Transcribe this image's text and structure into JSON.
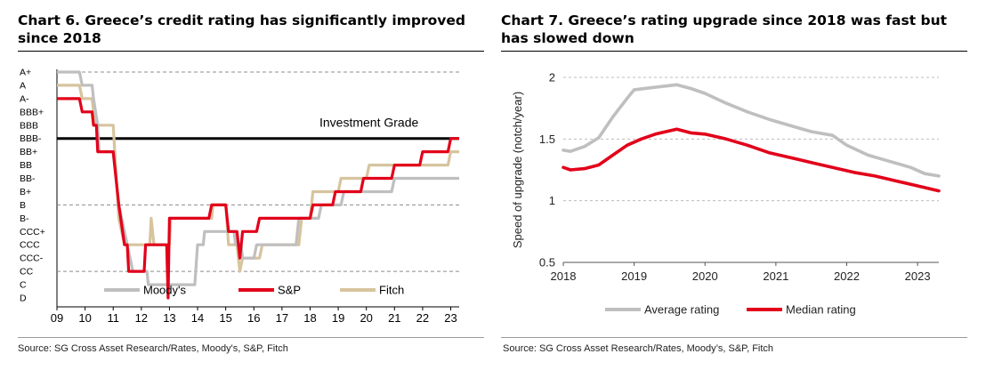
{
  "left_panel": {
    "title": "Chart 6. Greece’s credit rating has significantly improved since 2018",
    "source": "Source: SG Cross Asset Research/Rates, Moody's, S&P, Fitch"
  },
  "right_panel": {
    "title": "Chart 7. Greece’s rating upgrade since 2018 was fast but has slowed down",
    "source": "Source: SG Cross Asset Research/Rates, Moody’s, S&P, Fitch"
  },
  "chart_data": [
    {
      "type": "line",
      "title": "Chart 6. Greece’s credit rating has significantly improved since 2018",
      "x_tick_labels": [
        "09",
        "10",
        "11",
        "12",
        "13",
        "14",
        "15",
        "16",
        "17",
        "18",
        "19",
        "20",
        "21",
        "22",
        "23"
      ],
      "xlim": [
        2009,
        2023.3
      ],
      "y_categories": [
        "A+",
        "A",
        "A-",
        "BBB+",
        "BBB",
        "BBB-",
        "BB+",
        "BB",
        "BB-",
        "B+",
        "B",
        "B-",
        "CCC+",
        "CCC",
        "CCC-",
        "CC",
        "C",
        "D"
      ],
      "grid_dashed_at": [
        "A+",
        "B",
        "CC"
      ],
      "annotation": {
        "text": "Investment Grade",
        "level": "BBB-"
      },
      "legend_position": "bottom",
      "series": [
        {
          "name": "Moody's",
          "color": "#bfbfbf",
          "points": [
            [
              2009.0,
              "A+"
            ],
            [
              2009.8,
              "A+"
            ],
            [
              2009.9,
              "A"
            ],
            [
              2010.25,
              "A"
            ],
            [
              2010.3,
              "A-"
            ],
            [
              2010.45,
              "BBB"
            ],
            [
              2010.5,
              "BB+"
            ],
            [
              2011.0,
              "BB+"
            ],
            [
              2011.2,
              "B"
            ],
            [
              2011.5,
              "CCC"
            ],
            [
              2011.7,
              "CC"
            ],
            [
              2012.2,
              "CC"
            ],
            [
              2012.25,
              "C"
            ],
            [
              2013.9,
              "C"
            ],
            [
              2014.0,
              "CCC"
            ],
            [
              2014.2,
              "CCC"
            ],
            [
              2014.25,
              "CCC+"
            ],
            [
              2015.3,
              "CCC+"
            ],
            [
              2015.35,
              "CCC"
            ],
            [
              2015.55,
              "CCC"
            ],
            [
              2015.6,
              "CCC-"
            ],
            [
              2016.0,
              "CCC-"
            ],
            [
              2016.1,
              "CCC"
            ],
            [
              2017.5,
              "CCC"
            ],
            [
              2017.6,
              "B-"
            ],
            [
              2018.3,
              "B-"
            ],
            [
              2018.4,
              "B"
            ],
            [
              2019.1,
              "B"
            ],
            [
              2019.2,
              "B+"
            ],
            [
              2020.9,
              "B+"
            ],
            [
              2021.0,
              "BB-"
            ],
            [
              2023.3,
              "BB-"
            ]
          ]
        },
        {
          "name": "S&P",
          "color": "#e2001a",
          "points": [
            [
              2009.0,
              "A-"
            ],
            [
              2009.8,
              "A-"
            ],
            [
              2009.9,
              "BBB+"
            ],
            [
              2010.25,
              "BBB+"
            ],
            [
              2010.3,
              "BBB"
            ],
            [
              2010.4,
              "BBB"
            ],
            [
              2010.45,
              "BB+"
            ],
            [
              2011.0,
              "BB+"
            ],
            [
              2011.2,
              "B"
            ],
            [
              2011.4,
              "CCC"
            ],
            [
              2011.5,
              "CCC"
            ],
            [
              2011.55,
              "CC"
            ],
            [
              2012.1,
              "CC"
            ],
            [
              2012.15,
              "CCC"
            ],
            [
              2012.9,
              "CCC"
            ],
            [
              2012.95,
              "D"
            ],
            [
              2013.0,
              "B-"
            ],
            [
              2014.4,
              "B-"
            ],
            [
              2014.5,
              "B"
            ],
            [
              2015.0,
              "B"
            ],
            [
              2015.1,
              "CCC+"
            ],
            [
              2015.4,
              "CCC+"
            ],
            [
              2015.5,
              "CCC-"
            ],
            [
              2015.6,
              "CCC+"
            ],
            [
              2016.1,
              "CCC+"
            ],
            [
              2016.2,
              "B-"
            ],
            [
              2018.0,
              "B-"
            ],
            [
              2018.1,
              "B"
            ],
            [
              2018.8,
              "B"
            ],
            [
              2018.9,
              "B+"
            ],
            [
              2019.8,
              "B+"
            ],
            [
              2019.9,
              "BB-"
            ],
            [
              2020.9,
              "BB-"
            ],
            [
              2021.0,
              "BB"
            ],
            [
              2021.9,
              "BB"
            ],
            [
              2022.0,
              "BB+"
            ],
            [
              2022.9,
              "BB+"
            ],
            [
              2023.0,
              "BBB-"
            ],
            [
              2023.3,
              "BBB-"
            ]
          ]
        },
        {
          "name": "Fitch",
          "color": "#d7c49e",
          "points": [
            [
              2009.0,
              "A"
            ],
            [
              2009.8,
              "A"
            ],
            [
              2009.9,
              "A-"
            ],
            [
              2010.25,
              "A-"
            ],
            [
              2010.3,
              "BBB+"
            ],
            [
              2010.35,
              "BBB"
            ],
            [
              2011.0,
              "BBB"
            ],
            [
              2011.2,
              "B-"
            ],
            [
              2011.4,
              "CCC"
            ],
            [
              2012.3,
              "CCC"
            ],
            [
              2012.35,
              "B-"
            ],
            [
              2012.45,
              "CCC"
            ],
            [
              2013.0,
              "CCC"
            ],
            [
              2013.05,
              "B-"
            ],
            [
              2014.5,
              "B-"
            ],
            [
              2014.55,
              "B"
            ],
            [
              2015.0,
              "B"
            ],
            [
              2015.1,
              "CCC"
            ],
            [
              2015.4,
              "CCC"
            ],
            [
              2015.5,
              "CC"
            ],
            [
              2015.6,
              "CCC-"
            ],
            [
              2016.2,
              "CCC-"
            ],
            [
              2016.3,
              "CCC"
            ],
            [
              2017.6,
              "CCC"
            ],
            [
              2017.7,
              "B-"
            ],
            [
              2018.0,
              "B-"
            ],
            [
              2018.1,
              "B+"
            ],
            [
              2019.0,
              "B+"
            ],
            [
              2019.1,
              "BB-"
            ],
            [
              2020.0,
              "BB-"
            ],
            [
              2020.1,
              "BB"
            ],
            [
              2022.9,
              "BB"
            ],
            [
              2023.0,
              "BB+"
            ],
            [
              2023.3,
              "BB+"
            ]
          ]
        }
      ]
    },
    {
      "type": "line",
      "title": "Chart 7. Greece’s rating upgrade since 2018 was fast but has slowed down",
      "ylabel": "Speed of upgrade (notch/year)",
      "x_ticks": [
        2018,
        2019,
        2020,
        2021,
        2022,
        2023
      ],
      "y_ticks": [
        0.5,
        1,
        1.5,
        2
      ],
      "xlim": [
        2018,
        2023.3
      ],
      "ylim": [
        0.5,
        2
      ],
      "grid": "horizontal-dashed",
      "legend_position": "bottom",
      "series": [
        {
          "name": "Average rating",
          "color": "#bfbfbf",
          "points": [
            [
              2018.0,
              1.41
            ],
            [
              2018.1,
              1.4
            ],
            [
              2018.3,
              1.44
            ],
            [
              2018.5,
              1.51
            ],
            [
              2018.7,
              1.68
            ],
            [
              2018.9,
              1.83
            ],
            [
              2019.0,
              1.9
            ],
            [
              2019.3,
              1.92
            ],
            [
              2019.6,
              1.94
            ],
            [
              2019.8,
              1.91
            ],
            [
              2020.0,
              1.87
            ],
            [
              2020.3,
              1.79
            ],
            [
              2020.6,
              1.72
            ],
            [
              2020.9,
              1.66
            ],
            [
              2021.2,
              1.61
            ],
            [
              2021.5,
              1.56
            ],
            [
              2021.8,
              1.53
            ],
            [
              2022.0,
              1.45
            ],
            [
              2022.3,
              1.37
            ],
            [
              2022.6,
              1.32
            ],
            [
              2022.9,
              1.27
            ],
            [
              2023.1,
              1.22
            ],
            [
              2023.3,
              1.2
            ]
          ]
        },
        {
          "name": "Median rating",
          "color": "#e2001a",
          "points": [
            [
              2018.0,
              1.27
            ],
            [
              2018.1,
              1.25
            ],
            [
              2018.3,
              1.26
            ],
            [
              2018.5,
              1.29
            ],
            [
              2018.7,
              1.37
            ],
            [
              2018.9,
              1.45
            ],
            [
              2019.1,
              1.5
            ],
            [
              2019.3,
              1.54
            ],
            [
              2019.6,
              1.58
            ],
            [
              2019.8,
              1.55
            ],
            [
              2020.0,
              1.54
            ],
            [
              2020.3,
              1.5
            ],
            [
              2020.6,
              1.45
            ],
            [
              2020.9,
              1.39
            ],
            [
              2021.2,
              1.35
            ],
            [
              2021.5,
              1.31
            ],
            [
              2021.8,
              1.27
            ],
            [
              2022.1,
              1.23
            ],
            [
              2022.4,
              1.2
            ],
            [
              2022.7,
              1.16
            ],
            [
              2023.0,
              1.12
            ],
            [
              2023.3,
              1.08
            ]
          ]
        }
      ]
    }
  ]
}
